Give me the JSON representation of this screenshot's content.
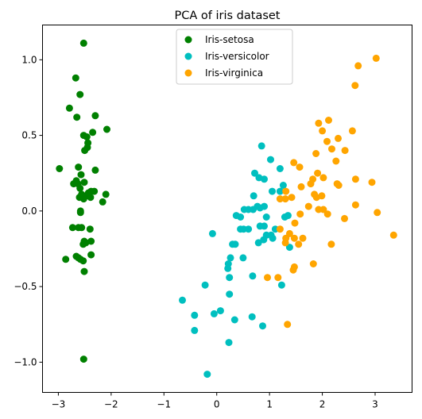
{
  "chart_data": {
    "type": "scatter",
    "title": "PCA of iris dataset",
    "xlabel": "",
    "ylabel": "",
    "xlim": [
      -3.3,
      3.7
    ],
    "ylim": [
      -1.2,
      1.23
    ],
    "xticks": [
      -3,
      -2,
      -1,
      0,
      1,
      2,
      3
    ],
    "yticks": [
      -1.0,
      -0.5,
      0.0,
      0.5,
      1.0
    ],
    "xtick_labels": [
      "−3",
      "−2",
      "−1",
      "0",
      "1",
      "2",
      "3"
    ],
    "ytick_labels": [
      "−1.0",
      "−0.5",
      "0.0",
      "0.5",
      "1.0"
    ],
    "grid": false,
    "legend_position": "top-center",
    "series": [
      {
        "name": "Iris-setosa",
        "color": "#008000",
        "points": [
          [
            -2.52,
            1.11
          ],
          [
            -2.67,
            0.88
          ],
          [
            -2.59,
            0.77
          ],
          [
            -2.79,
            0.68
          ],
          [
            -2.65,
            0.62
          ],
          [
            -2.3,
            0.63
          ],
          [
            -2.35,
            0.52
          ],
          [
            -2.08,
            0.54
          ],
          [
            -2.52,
            0.5
          ],
          [
            -2.46,
            0.49
          ],
          [
            -2.45,
            0.42
          ],
          [
            -2.5,
            0.4
          ],
          [
            -2.44,
            0.45
          ],
          [
            -2.98,
            0.28
          ],
          [
            -2.62,
            0.29
          ],
          [
            -2.3,
            0.27
          ],
          [
            -2.57,
            0.24
          ],
          [
            -2.66,
            0.2
          ],
          [
            -2.51,
            0.19
          ],
          [
            -2.63,
            0.18
          ],
          [
            -2.71,
            0.18
          ],
          [
            -2.59,
            0.15
          ],
          [
            -2.38,
            0.13
          ],
          [
            -2.32,
            0.13
          ],
          [
            -2.43,
            0.12
          ],
          [
            -2.1,
            0.11
          ],
          [
            -2.56,
            0.11
          ],
          [
            -2.48,
            0.1
          ],
          [
            -2.39,
            0.09
          ],
          [
            -2.52,
            0.08
          ],
          [
            -2.6,
            0.09
          ],
          [
            -2.16,
            0.06
          ],
          [
            -2.58,
            0.0
          ],
          [
            -2.58,
            -0.01
          ],
          [
            -2.73,
            -0.11
          ],
          [
            -2.62,
            -0.11
          ],
          [
            -2.56,
            -0.11
          ],
          [
            -2.4,
            -0.12
          ],
          [
            -2.51,
            -0.2
          ],
          [
            -2.38,
            -0.2
          ],
          [
            -2.48,
            -0.21
          ],
          [
            -2.53,
            -0.22
          ],
          [
            -2.66,
            -0.3
          ],
          [
            -2.38,
            -0.29
          ],
          [
            -2.86,
            -0.32
          ],
          [
            -2.62,
            -0.31
          ],
          [
            -2.58,
            -0.32
          ],
          [
            -2.53,
            -0.33
          ],
          [
            -2.51,
            -0.4
          ],
          [
            -2.52,
            -0.98
          ]
        ]
      },
      {
        "name": "Iris-versicolor",
        "color": "#00bfbf",
        "points": [
          [
            0.85,
            0.43
          ],
          [
            1.02,
            0.34
          ],
          [
            0.72,
            0.25
          ],
          [
            1.2,
            0.28
          ],
          [
            0.8,
            0.22
          ],
          [
            0.9,
            0.21
          ],
          [
            1.26,
            0.17
          ],
          [
            0.7,
            0.1
          ],
          [
            1.05,
            0.13
          ],
          [
            1.2,
            0.13
          ],
          [
            0.77,
            0.03
          ],
          [
            0.6,
            0.01
          ],
          [
            0.9,
            0.03
          ],
          [
            0.37,
            -0.03
          ],
          [
            0.45,
            -0.04
          ],
          [
            0.52,
            0.01
          ],
          [
            0.82,
            0.02
          ],
          [
            0.69,
            0.01
          ],
          [
            0.94,
            -0.04
          ],
          [
            1.29,
            -0.04
          ],
          [
            1.35,
            -0.03
          ],
          [
            0.45,
            -0.12
          ],
          [
            0.51,
            -0.12
          ],
          [
            0.6,
            -0.12
          ],
          [
            0.82,
            -0.1
          ],
          [
            0.9,
            -0.1
          ],
          [
            1.11,
            -0.12
          ],
          [
            1.03,
            -0.16
          ],
          [
            0.94,
            -0.16
          ],
          [
            0.89,
            -0.19
          ],
          [
            0.79,
            -0.21
          ],
          [
            1.06,
            -0.18
          ],
          [
            0.35,
            -0.22
          ],
          [
            0.3,
            -0.22
          ],
          [
            0.5,
            -0.31
          ],
          [
            0.22,
            -0.35
          ],
          [
            0.26,
            -0.31
          ],
          [
            0.21,
            -0.38
          ],
          [
            0.24,
            -0.44
          ],
          [
            0.68,
            -0.43
          ],
          [
            1.38,
            -0.24
          ],
          [
            1.23,
            -0.49
          ],
          [
            0.24,
            -0.55
          ],
          [
            -0.22,
            -0.49
          ],
          [
            -0.08,
            -0.15
          ],
          [
            -0.65,
            -0.59
          ],
          [
            -0.42,
            -0.69
          ],
          [
            0.07,
            -0.66
          ],
          [
            -0.05,
            -0.68
          ],
          [
            0.34,
            -0.72
          ],
          [
            -0.42,
            -0.79
          ],
          [
            0.67,
            -0.7
          ],
          [
            0.87,
            -0.76
          ],
          [
            0.23,
            -0.87
          ],
          [
            -0.18,
            -1.08
          ]
        ]
      },
      {
        "name": "Iris-virginica",
        "color": "#ffa500",
        "points": [
          [
            3.02,
            1.01
          ],
          [
            2.68,
            0.96
          ],
          [
            2.62,
            0.83
          ],
          [
            1.93,
            0.58
          ],
          [
            2.12,
            0.6
          ],
          [
            2.0,
            0.53
          ],
          [
            2.57,
            0.53
          ],
          [
            2.3,
            0.48
          ],
          [
            2.09,
            0.46
          ],
          [
            1.88,
            0.38
          ],
          [
            2.18,
            0.41
          ],
          [
            2.43,
            0.4
          ],
          [
            1.46,
            0.32
          ],
          [
            2.26,
            0.33
          ],
          [
            1.57,
            0.29
          ],
          [
            1.91,
            0.25
          ],
          [
            2.02,
            0.22
          ],
          [
            1.6,
            0.16
          ],
          [
            1.78,
            0.18
          ],
          [
            1.82,
            0.21
          ],
          [
            2.28,
            0.18
          ],
          [
            2.31,
            0.17
          ],
          [
            2.63,
            0.21
          ],
          [
            2.94,
            0.19
          ],
          [
            1.31,
            0.13
          ],
          [
            1.42,
            0.09
          ],
          [
            1.85,
            0.11
          ],
          [
            1.89,
            0.09
          ],
          [
            1.99,
            0.1
          ],
          [
            1.2,
            0.08
          ],
          [
            1.3,
            0.08
          ],
          [
            2.63,
            0.04
          ],
          [
            1.74,
            0.03
          ],
          [
            1.93,
            0.01
          ],
          [
            2.02,
            0.01
          ],
          [
            1.58,
            -0.02
          ],
          [
            2.1,
            -0.02
          ],
          [
            2.42,
            -0.05
          ],
          [
            3.04,
            -0.01
          ],
          [
            3.35,
            -0.16
          ],
          [
            1.48,
            -0.08
          ],
          [
            1.2,
            -0.12
          ],
          [
            1.38,
            -0.15
          ],
          [
            1.31,
            -0.18
          ],
          [
            1.47,
            -0.18
          ],
          [
            1.63,
            -0.18
          ],
          [
            1.3,
            -0.21
          ],
          [
            1.55,
            -0.22
          ],
          [
            2.17,
            -0.22
          ],
          [
            1.83,
            -0.35
          ],
          [
            1.47,
            -0.37
          ],
          [
            1.45,
            -0.39
          ],
          [
            0.96,
            -0.44
          ],
          [
            1.16,
            -0.44
          ],
          [
            1.34,
            -0.75
          ]
        ]
      }
    ]
  }
}
